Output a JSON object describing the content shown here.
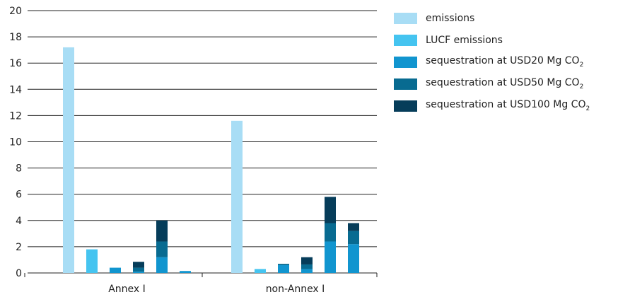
{
  "colors": {
    "emissions": "#a8ddf5",
    "lucf": "#45c4f0",
    "usd20": "#1195cf",
    "usd50": "#086b91",
    "usd100": "#063d5a"
  },
  "chart_data": {
    "type": "bar",
    "stacked": true,
    "ylim": [
      0,
      20
    ],
    "yticks": [
      0,
      2,
      4,
      6,
      8,
      10,
      12,
      14,
      16,
      18,
      20
    ],
    "grid": true,
    "legend_placement": "top-right",
    "groups": [
      {
        "label": "Annex I",
        "bars": [
          {
            "emissions": 17.2
          },
          {
            "lucf": 1.8
          },
          {
            "usd20": 0.4
          },
          {
            "usd20": 0.1,
            "usd50": 0.3,
            "usd100": 0.45
          },
          {
            "usd20": 1.2,
            "usd50": 1.2,
            "usd100": 1.6
          },
          {
            "usd20": 0.15
          }
        ]
      },
      {
        "label": "non-Annex I",
        "bars": [
          {
            "emissions": 11.6
          },
          {
            "lucf": 0.3
          },
          {
            "usd20": 0.6,
            "usd50": 0.1
          },
          {
            "usd20": 0.3,
            "usd50": 0.35,
            "usd100": 0.55
          },
          {
            "usd20": 2.4,
            "usd50": 1.4,
            "usd100": 2.0
          },
          {
            "usd20": 2.2,
            "usd50": 1.0,
            "usd100": 0.6
          }
        ]
      }
    ],
    "legend": [
      {
        "key": "emissions",
        "label": "emissions"
      },
      {
        "key": "lucf",
        "label": "LUCF emissions"
      },
      {
        "key": "usd20",
        "label": "sequestration at USD20 Mg CO",
        "sub": "2"
      },
      {
        "key": "usd50",
        "label": "sequestration at USD50 Mg CO",
        "sub": "2"
      },
      {
        "key": "usd100",
        "label": "sequestration at USD100 Mg CO",
        "sub": "2"
      }
    ]
  }
}
